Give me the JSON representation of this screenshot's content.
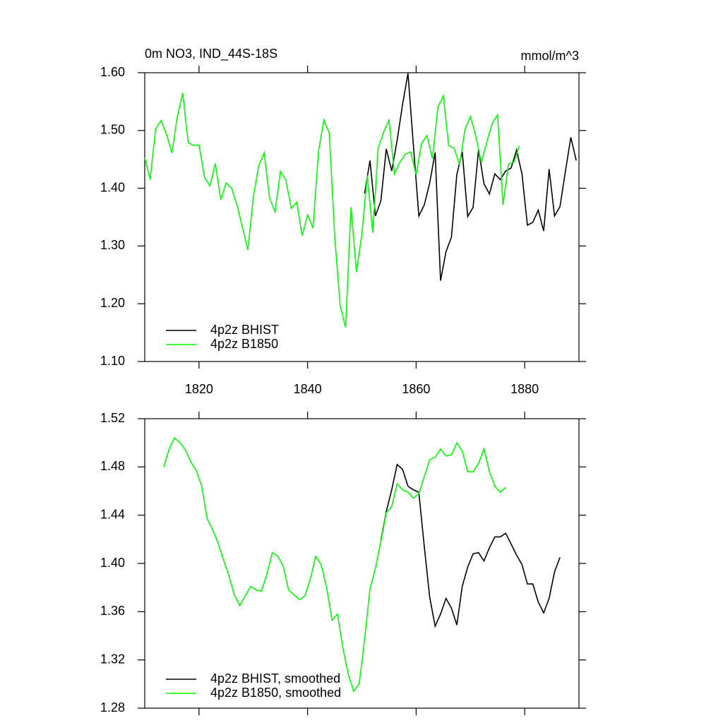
{
  "chart_data": [
    {
      "type": "line",
      "title": "0m NO3, IND_44S-18S",
      "units": "mmol/m^3",
      "xlim": [
        1810,
        1890
      ],
      "xticks": [
        1820,
        1840,
        1860,
        1880
      ],
      "ylim": [
        1.1,
        1.6
      ],
      "yticks": [
        {
          "value": 1.1,
          "label": "1.10"
        },
        {
          "value": 1.2,
          "label": "1.20"
        },
        {
          "value": 1.3,
          "label": "1.30"
        },
        {
          "value": 1.4,
          "label": "1.40"
        },
        {
          "value": 1.5,
          "label": "1.50"
        },
        {
          "value": 1.6,
          "label": "1.60"
        }
      ],
      "legend": "lower left",
      "series": [
        {
          "name": "4p2z BHIST",
          "color": "#000000",
          "x": [
            1850.5,
            1851.5,
            1852.5,
            1853.5,
            1854.5,
            1855.5,
            1856.5,
            1857.5,
            1858.5,
            1859.5,
            1860.5,
            1861.5,
            1862.5,
            1863.5,
            1864.5,
            1865.5,
            1866.5,
            1867.5,
            1868.5,
            1869.5,
            1870.5,
            1871.5,
            1872.5,
            1873.5,
            1874.5,
            1875.5,
            1876.5,
            1877.5,
            1878.5,
            1879.5,
            1880.5,
            1881.5,
            1882.5,
            1883.5,
            1884.5,
            1885.5,
            1886.5,
            1887.5,
            1888.5,
            1889.5
          ],
          "values": [
            1.391,
            1.448,
            1.352,
            1.378,
            1.468,
            1.43,
            1.483,
            1.545,
            1.599,
            1.474,
            1.352,
            1.371,
            1.409,
            1.462,
            1.24,
            1.29,
            1.315,
            1.424,
            1.463,
            1.351,
            1.367,
            1.467,
            1.408,
            1.39,
            1.425,
            1.415,
            1.43,
            1.435,
            1.466,
            1.425,
            1.336,
            1.341,
            1.362,
            1.326,
            1.433,
            1.352,
            1.368,
            1.429,
            1.488,
            1.448
          ]
        },
        {
          "name": "4p2z B1850",
          "color": "#00ff00",
          "x": [
            1810,
            1811,
            1812,
            1813,
            1814,
            1815,
            1816,
            1817,
            1818,
            1819,
            1820,
            1821,
            1822,
            1823,
            1824,
            1825,
            1826,
            1827,
            1828,
            1829,
            1830,
            1831,
            1832,
            1833,
            1834,
            1835,
            1836,
            1837,
            1838,
            1839,
            1840,
            1841,
            1842,
            1843,
            1844,
            1845,
            1846,
            1847,
            1848,
            1849,
            1850,
            1851,
            1852,
            1853,
            1854,
            1855,
            1856,
            1857,
            1858,
            1859,
            1860,
            1861,
            1862,
            1863,
            1864,
            1865,
            1866,
            1867,
            1868,
            1869,
            1870,
            1871,
            1872,
            1873,
            1874,
            1875,
            1876,
            1877,
            1878,
            1879
          ],
          "values": [
            1.453,
            1.415,
            1.503,
            1.517,
            1.494,
            1.461,
            1.524,
            1.565,
            1.479,
            1.474,
            1.475,
            1.419,
            1.404,
            1.443,
            1.38,
            1.409,
            1.4,
            1.371,
            1.332,
            1.293,
            1.385,
            1.439,
            1.461,
            1.383,
            1.359,
            1.429,
            1.414,
            1.365,
            1.376,
            1.318,
            1.354,
            1.331,
            1.463,
            1.518,
            1.495,
            1.316,
            1.197,
            1.159,
            1.367,
            1.255,
            1.32,
            1.422,
            1.323,
            1.469,
            1.497,
            1.518,
            1.425,
            1.445,
            1.459,
            1.463,
            1.423,
            1.478,
            1.491,
            1.451,
            1.54,
            1.56,
            1.474,
            1.469,
            1.441,
            1.502,
            1.524,
            1.49,
            1.445,
            1.479,
            1.512,
            1.527,
            1.371,
            1.442,
            1.445,
            1.473
          ]
        }
      ]
    },
    {
      "type": "line",
      "xlim": [
        1810,
        1890
      ],
      "ylim": [
        1.28,
        1.52
      ],
      "yticks": [
        1.28,
        1.32,
        1.36,
        {
          "value": 1.4,
          "label": "1.40"
        },
        1.44,
        1.48,
        1.52
      ],
      "legend": "lower left",
      "series": [
        {
          "name": "4p2z BHIST, smoothed",
          "color": "#000000",
          "x": [
            1853.5,
            1854.5,
            1855.5,
            1856.5,
            1857.5,
            1858.5,
            1859.5,
            1860.5,
            1861.5,
            1862.5,
            1863.5,
            1864.5,
            1865.5,
            1866.5,
            1867.5,
            1868.5,
            1869.5,
            1870.5,
            1871.5,
            1872.5,
            1873.5,
            1874.5,
            1875.5,
            1876.5,
            1877.5,
            1878.5,
            1879.5,
            1880.5,
            1881.5,
            1882.5,
            1883.5,
            1884.5,
            1885.5,
            1886.5
          ],
          "values": [
            1.419,
            1.443,
            1.461,
            1.482,
            1.478,
            1.464,
            1.461,
            1.459,
            1.414,
            1.372,
            1.348,
            1.358,
            1.371,
            1.363,
            1.349,
            1.381,
            1.397,
            1.408,
            1.409,
            1.402,
            1.413,
            1.422,
            1.422,
            1.425,
            1.416,
            1.407,
            1.399,
            1.383,
            1.383,
            1.368,
            1.359,
            1.371,
            1.393,
            1.405
          ]
        },
        {
          "name": "4p2z B1850, smoothed",
          "color": "#00ff00",
          "x": [
            1813.5,
            1814.5,
            1815.5,
            1816.5,
            1817.5,
            1818.5,
            1819.5,
            1820.5,
            1821.5,
            1822.5,
            1823.5,
            1824.5,
            1825.5,
            1826.5,
            1827.5,
            1828.5,
            1829.5,
            1830.5,
            1831.5,
            1832.5,
            1833.5,
            1834.5,
            1835.5,
            1836.5,
            1837.5,
            1838.5,
            1839.5,
            1840.5,
            1841.5,
            1842.5,
            1843.5,
            1844.5,
            1845.5,
            1846.5,
            1847.5,
            1848.5,
            1849.5,
            1850.5,
            1851.5,
            1852.5,
            1853.5,
            1854.5,
            1855.5,
            1856.5,
            1857.5,
            1858.5,
            1859.5,
            1860.5,
            1861.5,
            1862.5,
            1863.5,
            1864.5,
            1865.5,
            1866.5,
            1867.5,
            1868.5,
            1869.5,
            1870.5,
            1871.5,
            1872.5,
            1873.5,
            1874.5,
            1875.5,
            1876.5
          ],
          "values": [
            1.48,
            1.495,
            1.504,
            1.5,
            1.494,
            1.484,
            1.477,
            1.464,
            1.437,
            1.428,
            1.417,
            1.403,
            1.39,
            1.374,
            1.365,
            1.373,
            1.381,
            1.378,
            1.377,
            1.391,
            1.409,
            1.406,
            1.398,
            1.378,
            1.374,
            1.37,
            1.373,
            1.387,
            1.406,
            1.399,
            1.38,
            1.353,
            1.358,
            1.33,
            1.308,
            1.294,
            1.3,
            1.337,
            1.379,
            1.396,
            1.418,
            1.442,
            1.447,
            1.466,
            1.461,
            1.459,
            1.454,
            1.458,
            1.472,
            1.486,
            1.488,
            1.495,
            1.489,
            1.49,
            1.5,
            1.493,
            1.476,
            1.476,
            1.483,
            1.495,
            1.476,
            1.464,
            1.459,
            1.463
          ]
        }
      ]
    }
  ]
}
